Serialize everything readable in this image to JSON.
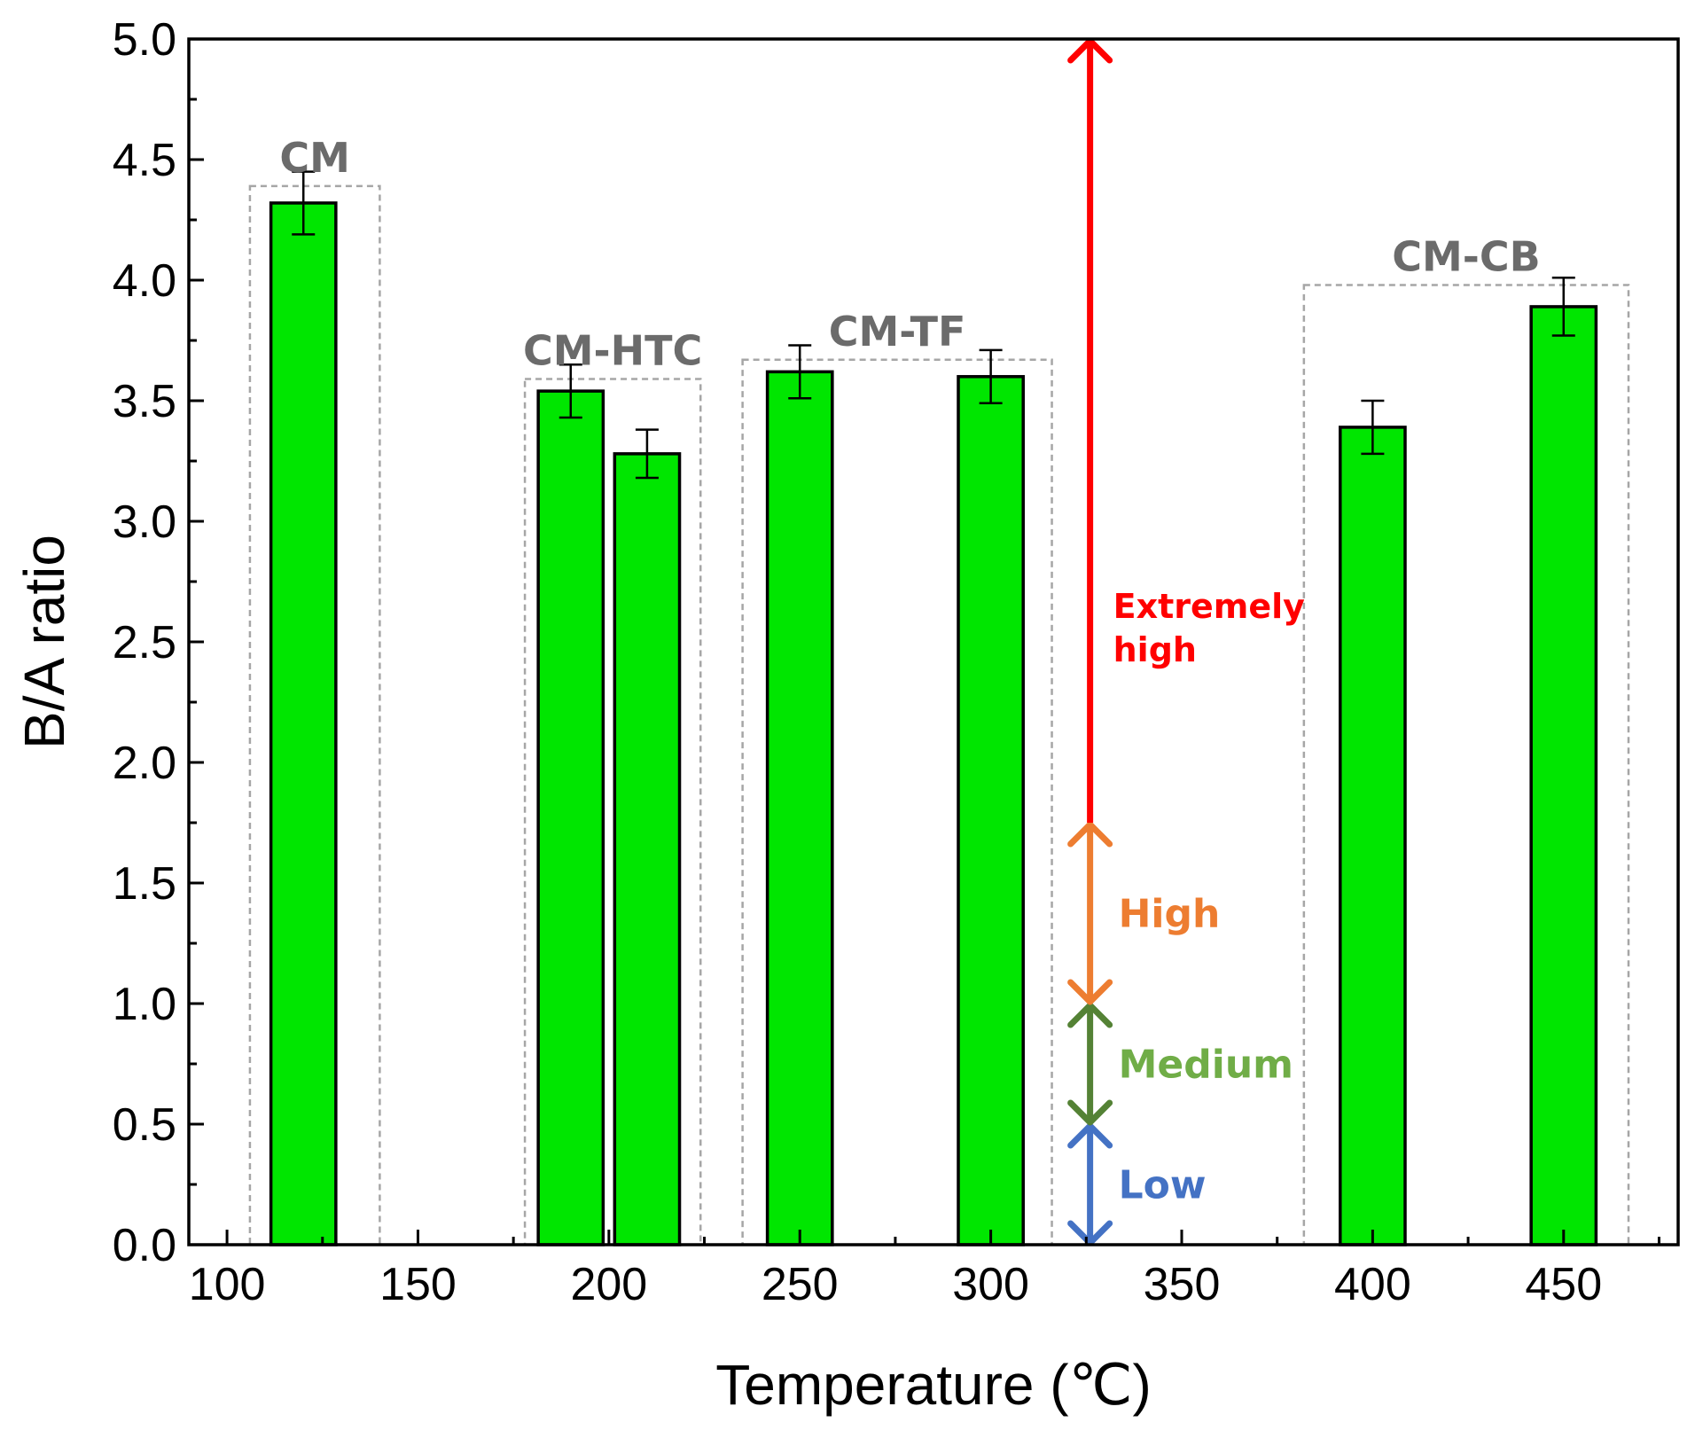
{
  "chart_data": {
    "type": "bar",
    "title": "",
    "xlabel": "Temperature (℃)",
    "ylabel": "B/A ratio",
    "xlim": [
      90,
      480
    ],
    "ylim": [
      0.0,
      5.0
    ],
    "x_ticks": [
      100,
      150,
      200,
      250,
      300,
      350,
      400,
      450
    ],
    "y_ticks": [
      0.0,
      0.5,
      1.0,
      1.5,
      2.0,
      2.5,
      3.0,
      3.5,
      4.0,
      4.5,
      5.0
    ],
    "y_tick_labels": [
      "0.0",
      "0.5",
      "1.0",
      "1.5",
      "2.0",
      "2.5",
      "3.0",
      "3.5",
      "4.0",
      "4.5",
      "5.0"
    ],
    "bar_color": "#00e600",
    "bar_width": 17,
    "bars": [
      {
        "x": 120,
        "value": 4.32,
        "error": 0.13
      },
      {
        "x": 190,
        "value": 3.54,
        "error": 0.11
      },
      {
        "x": 210,
        "value": 3.28,
        "error": 0.1
      },
      {
        "x": 250,
        "value": 3.62,
        "error": 0.11
      },
      {
        "x": 300,
        "value": 3.6,
        "error": 0.11
      },
      {
        "x": 400,
        "value": 3.39,
        "error": 0.11
      },
      {
        "x": 450,
        "value": 3.89,
        "error": 0.12
      }
    ],
    "groups": [
      {
        "label": "CM",
        "x_range": [
          106,
          140
        ],
        "y_top": 4.39
      },
      {
        "label": "CM-HTC",
        "x_range": [
          178,
          224
        ],
        "y_top": 3.59
      },
      {
        "label": "CM-TF",
        "x_range": [
          235,
          316
        ],
        "y_top": 3.67
      },
      {
        "label": "CM-CB",
        "x_range": [
          382,
          467
        ],
        "y_top": 3.98
      }
    ],
    "levels": [
      {
        "label": "Low",
        "from": 0.0,
        "to": 0.5,
        "color": "#4472c4",
        "arrow": "both"
      },
      {
        "label": "Medium",
        "from": 0.5,
        "to": 1.0,
        "color": "#548235",
        "text_color": "#70ad47",
        "arrow": "both"
      },
      {
        "label": "High",
        "from": 1.0,
        "to": 1.75,
        "color": "#ed7d31",
        "arrow": "both"
      },
      {
        "label": "Extremely\nhigh",
        "from": 1.75,
        "to": 5.0,
        "color": "#ff0000",
        "arrow": "up"
      }
    ],
    "levels_x": 326
  }
}
